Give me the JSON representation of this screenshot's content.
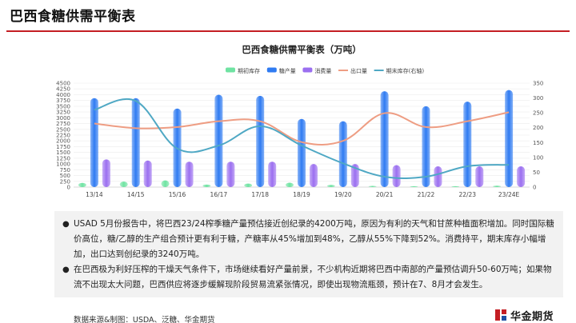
{
  "header": {
    "title": "巴西食糖供需平衡表"
  },
  "chart_data": {
    "type": "bar",
    "title": "巴西食糖供需平衡表（万吨）",
    "categories": [
      "13/14",
      "14/15",
      "15/16",
      "16/17",
      "17/18",
      "18/19",
      "19/20",
      "20/21",
      "21/22",
      "22/23",
      "23/24E"
    ],
    "series": [
      {
        "name": "期初库存",
        "type": "bar",
        "axis": "left",
        "color": "#6fe3a2",
        "values": [
          180,
          240,
          290,
          110,
          150,
          190,
          95,
          50,
          40,
          40,
          60
        ]
      },
      {
        "name": "糖产量",
        "type": "bar",
        "axis": "left",
        "color": "#2f7bf2",
        "values": [
          3850,
          3850,
          3400,
          4000,
          3950,
          2950,
          2850,
          4150,
          3500,
          3700,
          4200
        ]
      },
      {
        "name": "消费量",
        "type": "bar",
        "axis": "left",
        "color": "#9b6ff0",
        "values": [
          1200,
          1150,
          1100,
          1100,
          1100,
          1000,
          1000,
          950,
          900,
          900,
          900
        ]
      },
      {
        "name": "出口量",
        "type": "line",
        "axis": "left",
        "color": "#ee9d83",
        "values": [
          2750,
          2550,
          2600,
          2850,
          2850,
          1950,
          2000,
          3200,
          2600,
          2850,
          3240
        ]
      },
      {
        "name": "期末库存(右轴)",
        "type": "line",
        "axis": "right",
        "color": "#4fa8c4",
        "values": [
          260,
          290,
          130,
          140,
          205,
          140,
          80,
          35,
          35,
          70,
          75
        ]
      }
    ],
    "y_left": {
      "min": 0,
      "max": 4500,
      "ticks": [
        "0",
        "250",
        "500",
        "750",
        "1000",
        "1250",
        "1500",
        "1750",
        "2000",
        "2250",
        "2500",
        "2750",
        "3000",
        "3250",
        "3500",
        "3750",
        "4000",
        "4250",
        "4500"
      ]
    },
    "y_right": {
      "min": 0,
      "max": 350,
      "ticks": [
        "0",
        "50",
        "100",
        "150",
        "200",
        "250",
        "300",
        "350"
      ]
    },
    "legend_position": "top"
  },
  "notes": [
    "USAD 5月份报告中，将巴西23/24榨季糖产量预估接近创纪录的4200万吨，原因为有利的天气和甘蔗种植面积增加。同时国际糖价高位，糖/乙醇的生产组合预计更有利于糖，产糖率从45%增加到48%，乙醇从55%下降到52%。消费持平，期末库存小幅增加，出口达到创纪录的3240万吨。",
    "在巴西极为利好压榨的干燥天气条件下，市场继续看好产量前景，不少机构近期将巴西中南部的产量预估调升50-60万吨；如果物流不出现太大问题，巴西供应将逐步缓解现阶段贸易流紧张情况，即使出现物流瓶颈，预计在7、8月才会发生。"
  ],
  "footer": {
    "source": "数据来源&制图：USDA、泛糖、华金期货",
    "logo_text": "华金期货",
    "logo_colors": {
      "red": "#c41e24",
      "blue": "#1f4fa3"
    }
  }
}
